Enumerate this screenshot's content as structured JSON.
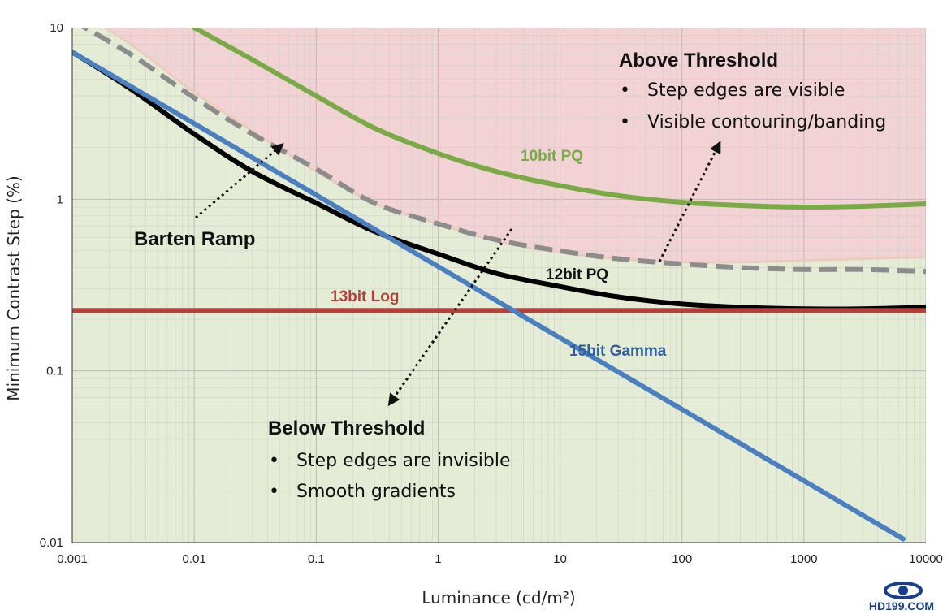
{
  "chart_data": {
    "type": "line",
    "title": "",
    "xlabel": "Luminance (cd/m²)",
    "ylabel": "Minimum Contrast Step (%)",
    "xscale": "log",
    "yscale": "log",
    "xlim": [
      0.001,
      10000
    ],
    "ylim": [
      0.01,
      10
    ],
    "grid": true,
    "x_ticks": [
      "0.001",
      "0.01",
      "0.1",
      "1",
      "10",
      "100",
      "1000",
      "10000"
    ],
    "y_ticks": [
      "0.01",
      "0.1",
      "1",
      "10"
    ],
    "regions": [
      {
        "name": "Above Threshold",
        "color": "#f2d2d5"
      },
      {
        "name": "Below Threshold",
        "color": "#e4ecd6"
      }
    ],
    "series": [
      {
        "name": "Barten Ramp",
        "color": "#eaccbd",
        "style": "solid",
        "x": [
          0.001,
          0.003,
          0.01,
          0.03,
          0.1,
          0.3,
          1,
          3,
          10,
          30,
          100,
          300,
          1000,
          3000,
          10000
        ],
        "y": [
          13,
          8.0,
          4.2,
          2.5,
          1.45,
          0.95,
          0.72,
          0.57,
          0.49,
          0.45,
          0.43,
          0.43,
          0.44,
          0.45,
          0.46
        ]
      },
      {
        "name": "",
        "color": "#8c8c8c",
        "style": "dashed",
        "x": [
          0.001,
          0.003,
          0.01,
          0.03,
          0.1,
          0.3,
          1,
          3,
          10,
          30,
          100,
          300,
          1000,
          3000,
          10000
        ],
        "y": [
          11,
          7.0,
          3.9,
          2.4,
          1.5,
          0.95,
          0.72,
          0.58,
          0.5,
          0.45,
          0.42,
          0.4,
          0.39,
          0.39,
          0.38
        ]
      },
      {
        "name": "10bit PQ",
        "color": "#7aaa45",
        "style": "solid",
        "x": [
          0.01,
          0.03,
          0.1,
          0.3,
          1,
          3,
          10,
          30,
          100,
          300,
          1000,
          3000,
          10000
        ],
        "y": [
          10,
          6.5,
          4.0,
          2.6,
          1.85,
          1.45,
          1.2,
          1.05,
          0.96,
          0.92,
          0.9,
          0.91,
          0.94
        ]
      },
      {
        "name": "12bit PQ",
        "color": "#000000",
        "style": "solid",
        "x": [
          0.001,
          0.003,
          0.01,
          0.03,
          0.1,
          0.3,
          1,
          3,
          10,
          30,
          100,
          300,
          1000,
          3000,
          10000
        ],
        "y": [
          7.2,
          4.4,
          2.4,
          1.45,
          0.95,
          0.65,
          0.48,
          0.37,
          0.31,
          0.27,
          0.245,
          0.235,
          0.23,
          0.23,
          0.235
        ]
      },
      {
        "name": "13bit Log",
        "color": "#b5403b",
        "style": "solid",
        "x": [
          0.001,
          10000
        ],
        "y": [
          0.225,
          0.225
        ]
      },
      {
        "name": "15bit Gamma",
        "color": "#4a7fc0",
        "style": "solid",
        "x": [
          0.001,
          6500
        ],
        "y": [
          7.2,
          0.0105
        ]
      }
    ],
    "annotations": {
      "above": {
        "title": "Above Threshold",
        "bullets": [
          "Step edges are visible",
          "Visible contouring/banding"
        ]
      },
      "below": {
        "title": "Below Threshold",
        "bullets": [
          "Step edges are invisible",
          "Smooth gradients"
        ]
      },
      "barten": "Barten Ramp"
    }
  },
  "bullet_char": "•",
  "watermark": {
    "text": "HD199.COM",
    "logo": "eye-logo-icon",
    "color": "#1b3f8f"
  }
}
